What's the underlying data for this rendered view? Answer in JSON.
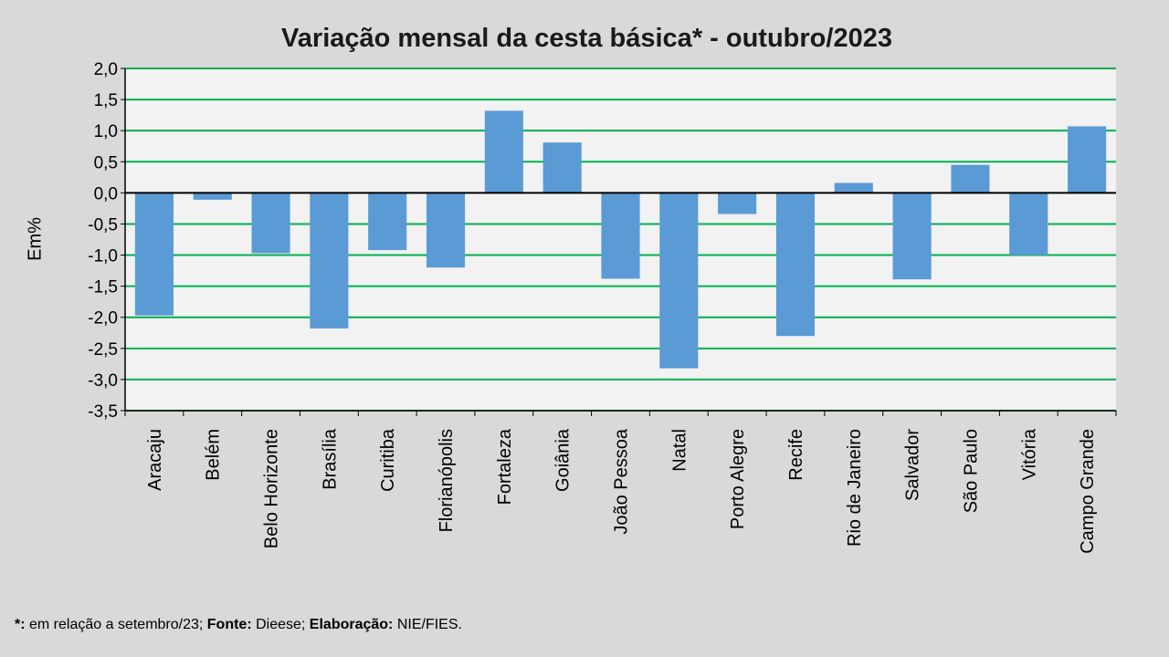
{
  "chart_data": {
    "type": "bar",
    "title": "Variação  mensal da cesta básica* - outubro/2023",
    "xlabel": "",
    "ylabel": "Em%",
    "ylim": [
      -3.5,
      2.0
    ],
    "ytick_step": 0.5,
    "grid": true,
    "categories": [
      "Aracaju",
      "Belém",
      "Belo Horizonte",
      "Brasília",
      "Curitiba",
      "Florianópolis",
      "Fortaleza",
      "Goiânia",
      "João Pessoa",
      "Natal",
      "Porto Alegre",
      "Recife",
      "Rio de Janeiro",
      "Salvador",
      "São Paulo",
      "Vitória",
      "Campo Grande"
    ],
    "values": [
      -1.97,
      -0.11,
      -0.97,
      -2.18,
      -0.92,
      -1.2,
      1.32,
      0.81,
      -1.38,
      -2.82,
      -0.34,
      -2.3,
      0.16,
      -1.39,
      0.45,
      -1.0,
      1.07
    ],
    "colors": {
      "bar": "#5b9bd5",
      "grid": "#00b050",
      "axis": "#000000",
      "plot_bg": "#f2f2f2"
    }
  },
  "footnote": {
    "asterisk": "*:",
    "text1": " em relação a setembro/23; ",
    "source_label": "Fonte:",
    "text2": " Dieese; ",
    "elab_label": "Elaboração:",
    "text3": " NIE/FIES."
  }
}
